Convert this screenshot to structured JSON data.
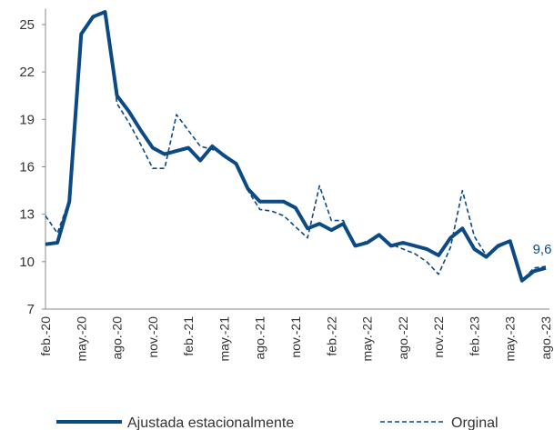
{
  "chart_data": {
    "type": "line",
    "categories": [
      "feb.-20",
      null,
      null,
      "may.-20",
      null,
      null,
      "ago.-20",
      null,
      null,
      "nov.-20",
      null,
      null,
      "feb.-21",
      null,
      null,
      "may.-21",
      null,
      null,
      "ago.-21",
      null,
      null,
      "nov.-21",
      null,
      null,
      "feb.-22",
      null,
      null,
      "may.-22",
      null,
      null,
      "ago.-22",
      null,
      null,
      "nov.-22",
      null,
      null,
      "feb.-23",
      null,
      null,
      "may.-23",
      null,
      null,
      "ago.-23"
    ],
    "series": [
      {
        "name": "Ajustada estacionalmente",
        "color": "#0b4a85",
        "dash": false,
        "values": [
          11.1,
          11.2,
          13.8,
          24.4,
          25.5,
          25.8,
          20.5,
          19.5,
          18.3,
          17.2,
          16.8,
          17.0,
          17.2,
          16.4,
          17.3,
          16.7,
          16.2,
          14.6,
          13.8,
          13.8,
          13.8,
          13.4,
          12.1,
          12.4,
          12.0,
          12.4,
          11.0,
          11.2,
          11.7,
          11.0,
          11.2,
          11.0,
          10.8,
          10.4,
          11.5,
          12.1,
          10.8,
          10.3,
          11.0,
          11.3,
          8.8,
          9.4,
          9.6
        ],
        "value_labels": [
          null,
          null,
          null,
          null,
          null,
          null,
          null,
          null,
          null,
          null,
          null,
          null,
          null,
          null,
          null,
          null,
          null,
          null,
          null,
          null,
          null,
          null,
          null,
          null,
          null,
          null,
          null,
          null,
          null,
          null,
          null,
          null,
          null,
          null,
          null,
          null,
          null,
          null,
          null,
          null,
          null,
          null,
          "9,6"
        ]
      },
      {
        "name": "Orginal",
        "color": "#0b4a85",
        "dash": true,
        "values": [
          12.9,
          11.8,
          13.9,
          24.3,
          25.4,
          25.8,
          20.0,
          18.8,
          17.4,
          15.9,
          15.9,
          19.3,
          18.3,
          17.3,
          17.1,
          16.8,
          16.1,
          14.5,
          13.3,
          13.2,
          12.9,
          12.2,
          11.5,
          14.8,
          12.6,
          12.6,
          11.0,
          11.3,
          11.6,
          11.1,
          10.8,
          10.5,
          10.0,
          9.2,
          10.9,
          14.5,
          11.6,
          10.4,
          10.9,
          11.3,
          8.8,
          9.6,
          9.7
        ]
      }
    ],
    "ylim": [
      7,
      26
    ],
    "yticks": [
      7,
      10,
      13,
      16,
      19,
      22,
      25
    ],
    "grid": false,
    "legend": "bottom"
  }
}
